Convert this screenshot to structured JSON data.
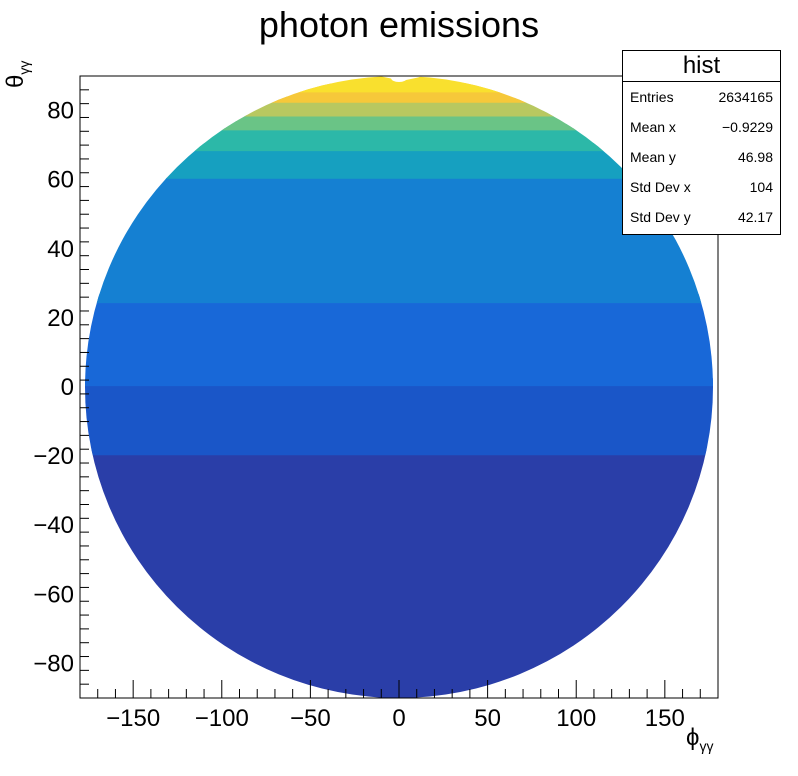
{
  "chart_data": {
    "type": "heatmap",
    "title": "photon emissions",
    "xlabel": "ϕ",
    "xlabel_sub": "γγ",
    "ylabel": "θ",
    "ylabel_sub": "γγ",
    "xlim": [
      -180,
      180
    ],
    "ylim": [
      -90,
      90
    ],
    "x_ticks": [
      -150,
      -100,
      -50,
      0,
      50,
      100,
      150
    ],
    "y_ticks": [
      -80,
      -60,
      -40,
      -20,
      0,
      20,
      40,
      60,
      80
    ],
    "grid": false,
    "legend": "none",
    "projection": "circular (elliptical) map of phi vs theta",
    "colormap": [
      "#2a3ea8",
      "#1a56c8",
      "#1868d8",
      "#1580d2",
      "#16a0c0",
      "#2cb8a8",
      "#6ac486",
      "#b8c860",
      "#f6c83a",
      "#f9e02e"
    ],
    "bands": [
      {
        "theta_min": -90,
        "theta_max": -18,
        "level": 0
      },
      {
        "theta_min": -18,
        "theta_max": 2,
        "level": 1
      },
      {
        "theta_min": 2,
        "theta_max": 26,
        "level": 2
      },
      {
        "theta_min": 26,
        "theta_max": 62,
        "level": 3
      },
      {
        "theta_min": 62,
        "theta_max": 70,
        "level": 4
      },
      {
        "theta_min": 70,
        "theta_max": 76,
        "level": 5
      },
      {
        "theta_min": 76,
        "theta_max": 80,
        "level": 6
      },
      {
        "theta_min": 80,
        "theta_max": 84,
        "level": 7
      },
      {
        "theta_min": 84,
        "theta_max": 87,
        "level": 8
      },
      {
        "theta_min": 87,
        "theta_max": 90,
        "level": 9
      }
    ]
  },
  "stats": {
    "name": "hist",
    "rows": [
      {
        "label": "Entries",
        "value": "2634165"
      },
      {
        "label": "Mean x",
        "value": "−0.9229"
      },
      {
        "label": "Mean y",
        "value": "46.98"
      },
      {
        "label": "Std Dev x",
        "value": "104"
      },
      {
        "label": "Std Dev y",
        "value": "42.17"
      }
    ]
  }
}
